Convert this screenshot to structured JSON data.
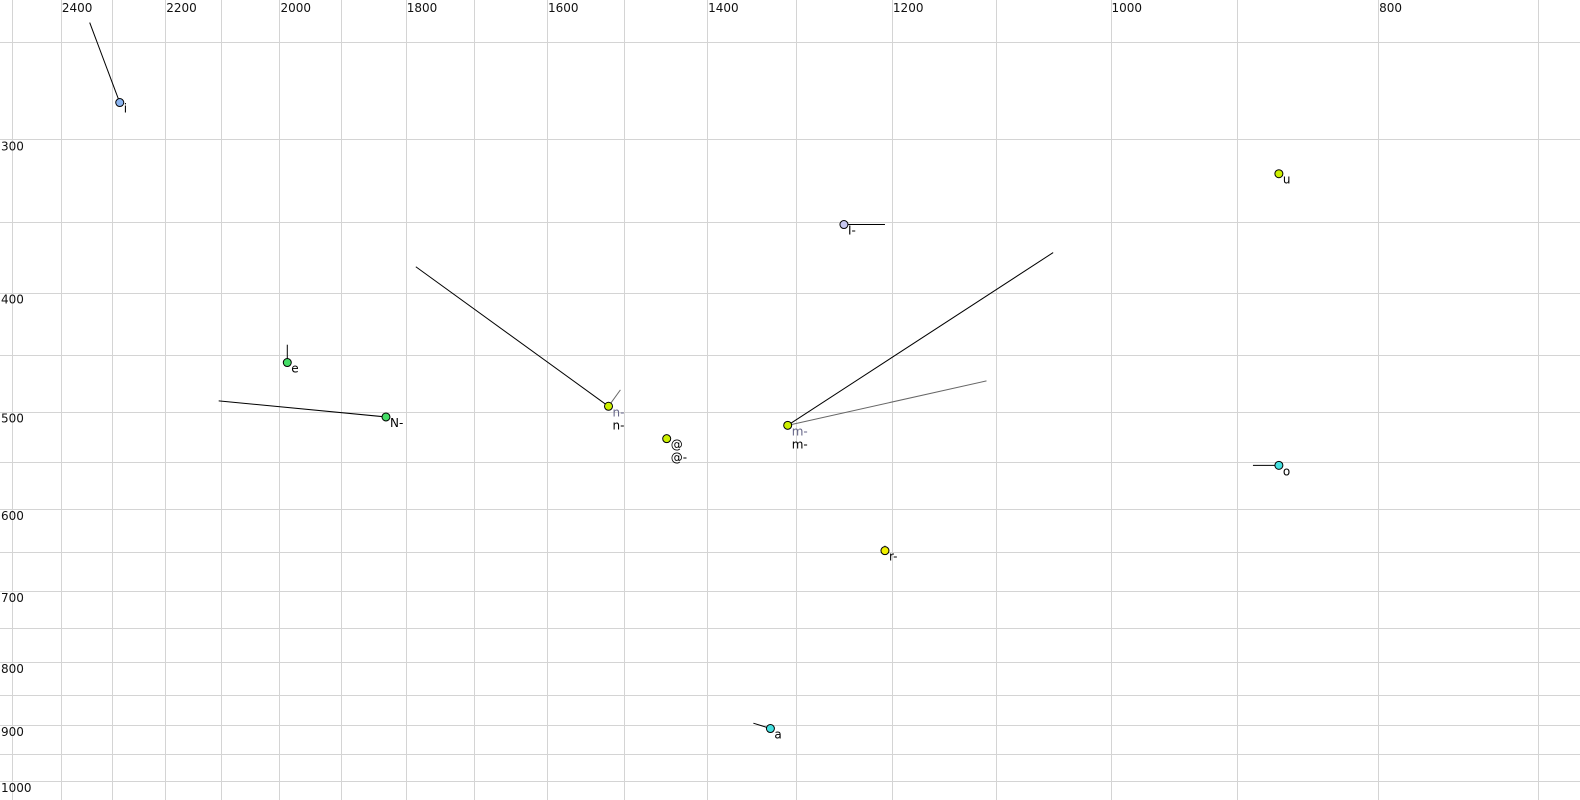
{
  "chart_data": {
    "type": "scatter",
    "title": "",
    "xlabel": "",
    "ylabel": "",
    "x_scale": "log",
    "y_scale": "log",
    "x_reversed": true,
    "xlim": [
      2525,
      676
    ],
    "ylim": [
      231,
      1036
    ],
    "grid": true,
    "x_grid_step": 100,
    "y_grid_step": 50,
    "x_ticks": [
      "2400",
      "2200",
      "2000",
      "1800",
      "1600",
      "1400",
      "1200",
      "1000",
      "800"
    ],
    "y_ticks": [
      "300",
      "400",
      "500",
      "600",
      "700",
      "800",
      "900",
      "1000"
    ],
    "points": [
      {
        "id": "i",
        "f2": 2285,
        "f1": 280,
        "color": "#8ab4f0",
        "labels": [
          {
            "text": "i",
            "color": "#000000"
          }
        ],
        "trails": [
          {
            "f2": 2343,
            "f1": 241,
            "color": "#000000"
          }
        ]
      },
      {
        "id": "u",
        "f2": 869,
        "f1": 320,
        "color": "#ccf000",
        "labels": [
          {
            "text": "u",
            "color": "#000000"
          }
        ],
        "trails": []
      },
      {
        "id": "I-",
        "f2": 1249,
        "f1": 352,
        "color": "#c8c8f0",
        "labels": [
          {
            "text": "I-",
            "color": "#000000"
          }
        ],
        "trails": [
          {
            "f2": 1207,
            "f1": 352,
            "color": "#000000"
          }
        ]
      },
      {
        "id": "e",
        "f2": 1987,
        "f1": 456,
        "color": "#44dd66",
        "labels": [
          {
            "text": "e",
            "color": "#000000"
          }
        ],
        "trails": [
          {
            "f2": 1987,
            "f1": 441,
            "color": "#000000"
          }
        ]
      },
      {
        "id": "N-",
        "f2": 1830,
        "f1": 505,
        "color": "#44dd66",
        "labels": [
          {
            "text": "N-",
            "color": "#000000"
          }
        ],
        "trails": [
          {
            "f2": 2104,
            "f1": 490,
            "color": "#000000"
          }
        ]
      },
      {
        "id": "n-",
        "f2": 1520,
        "f1": 495,
        "color": "#ccf000",
        "labels": [
          {
            "text": "n-",
            "color": "#666688"
          },
          {
            "text": "n-",
            "color": "#000000"
          }
        ],
        "trails": [
          {
            "f2": 1785,
            "f1": 381,
            "color": "#000000"
          },
          {
            "f2": 1505,
            "f1": 480,
            "color": "#666666"
          }
        ]
      },
      {
        "id": "@",
        "f2": 1448,
        "f1": 526,
        "color": "#ccf000",
        "labels": [
          {
            "text": "@",
            "color": "#000000"
          },
          {
            "text": "@-",
            "color": "#000000"
          }
        ],
        "trails": []
      },
      {
        "id": "m-",
        "f2": 1309,
        "f1": 513,
        "color": "#ccf000",
        "labels": [
          {
            "text": "m-",
            "color": "#666688"
          },
          {
            "text": "m-",
            "color": "#000000"
          }
        ],
        "trails": [
          {
            "f2": 1049,
            "f1": 371,
            "color": "#000000"
          },
          {
            "f2": 1109,
            "f1": 472,
            "color": "#666666"
          }
        ]
      },
      {
        "id": "o",
        "f2": 869,
        "f1": 553,
        "color": "#44e0e0",
        "labels": [
          {
            "text": "o",
            "color": "#000000"
          }
        ],
        "trails": [
          {
            "f2": 888,
            "f1": 553,
            "color": "#000000"
          }
        ]
      },
      {
        "id": "r-",
        "f2": 1207,
        "f1": 649,
        "color": "#f0f000",
        "labels": [
          {
            "text": "r-",
            "color": "#000000"
          }
        ],
        "trails": [
          {
            "f2": 1207,
            "f1": 643,
            "color": "#000000"
          }
        ]
      },
      {
        "id": "a",
        "f2": 1328,
        "f1": 906,
        "color": "#44e0e0",
        "labels": [
          {
            "text": "a",
            "color": "#000000"
          }
        ],
        "trails": [
          {
            "f2": 1347,
            "f1": 897,
            "color": "#000000"
          }
        ]
      }
    ]
  }
}
